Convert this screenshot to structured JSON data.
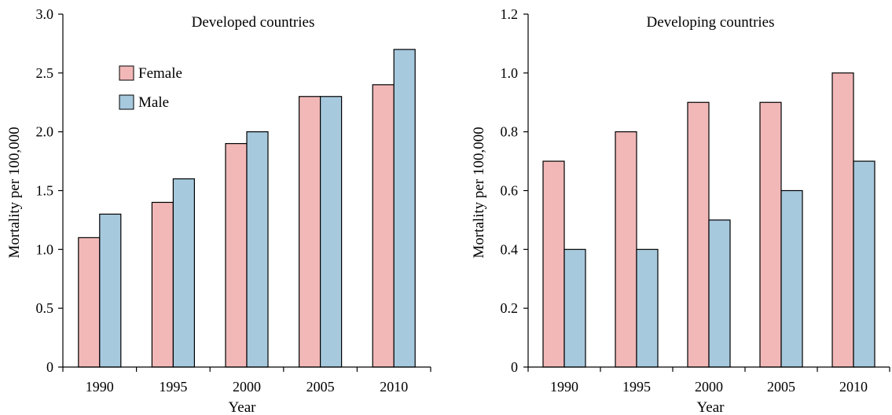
{
  "colors": {
    "female": "#f2b8b8",
    "male": "#a6c9de",
    "axis": "#000000"
  },
  "chart_data": [
    {
      "type": "bar",
      "title": "Developed countries",
      "xlabel": "Year",
      "ylabel": "Mortality per 100,000",
      "categories": [
        "1990",
        "1995",
        "2000",
        "2005",
        "2010"
      ],
      "ylim": [
        0,
        3.0
      ],
      "yticks": [
        "0",
        "0.5",
        "1.0",
        "1.5",
        "2.0",
        "2.5",
        "3.0"
      ],
      "legend": "top-left",
      "grid": false,
      "series": [
        {
          "name": "Female",
          "values": [
            1.1,
            1.4,
            1.9,
            2.3,
            2.4
          ]
        },
        {
          "name": "Male",
          "values": [
            1.3,
            1.6,
            2.0,
            2.3,
            2.7
          ]
        }
      ]
    },
    {
      "type": "bar",
      "title": "Developing countries",
      "xlabel": "Year",
      "ylabel": "Mortality per 100,000",
      "categories": [
        "1990",
        "1995",
        "2000",
        "2005",
        "2010"
      ],
      "ylim": [
        0,
        1.2
      ],
      "yticks": [
        "0",
        "0.2",
        "0.4",
        "0.6",
        "0.8",
        "1.0",
        "1.2"
      ],
      "legend": "none",
      "grid": false,
      "series": [
        {
          "name": "Female",
          "values": [
            0.7,
            0.8,
            0.9,
            0.9,
            1.0
          ]
        },
        {
          "name": "Male",
          "values": [
            0.4,
            0.4,
            0.5,
            0.6,
            0.7
          ]
        }
      ]
    }
  ]
}
